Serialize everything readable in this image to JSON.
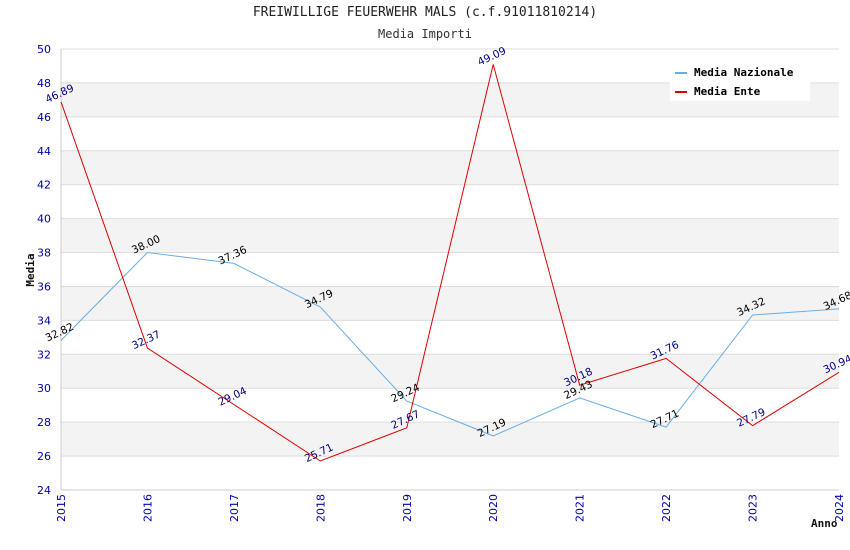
{
  "chart_data": {
    "type": "line",
    "title": "FREIWILLIGE FEUERWEHR MALS (c.f.91011810214)",
    "subtitle": "Media Importi",
    "xlabel": "Anno",
    "ylabel": "Media",
    "ylim": [
      24,
      50
    ],
    "yticks": [
      24,
      26,
      28,
      30,
      32,
      34,
      36,
      38,
      40,
      42,
      44,
      46,
      48,
      50
    ],
    "categories": [
      "2015",
      "2016",
      "2017",
      "2018",
      "2019",
      "2020",
      "2021",
      "2022",
      "2023",
      "2024"
    ],
    "grid": true,
    "legend_position": "top-right",
    "series": [
      {
        "name": "Media Nazionale",
        "color": "#6aaee6",
        "label_color": "#000000",
        "values": [
          32.82,
          38.0,
          37.36,
          34.79,
          29.24,
          27.19,
          29.43,
          27.71,
          34.32,
          34.68
        ],
        "labels": [
          "32.82",
          "38.00",
          "37.36",
          "34.79",
          "29.24",
          "27.19",
          "29.43",
          "27.71",
          "34.32",
          "34.68"
        ]
      },
      {
        "name": "Media Ente",
        "color": "#dd0000",
        "label_color": "#000080",
        "values": [
          46.89,
          32.37,
          29.04,
          25.71,
          27.67,
          49.09,
          30.18,
          31.76,
          27.79,
          30.94
        ],
        "labels": [
          "46.89",
          "32.37",
          "29.04",
          "25.71",
          "27.67",
          "49.09",
          "30.18",
          "31.76",
          "27.79",
          "30.94"
        ]
      }
    ]
  }
}
